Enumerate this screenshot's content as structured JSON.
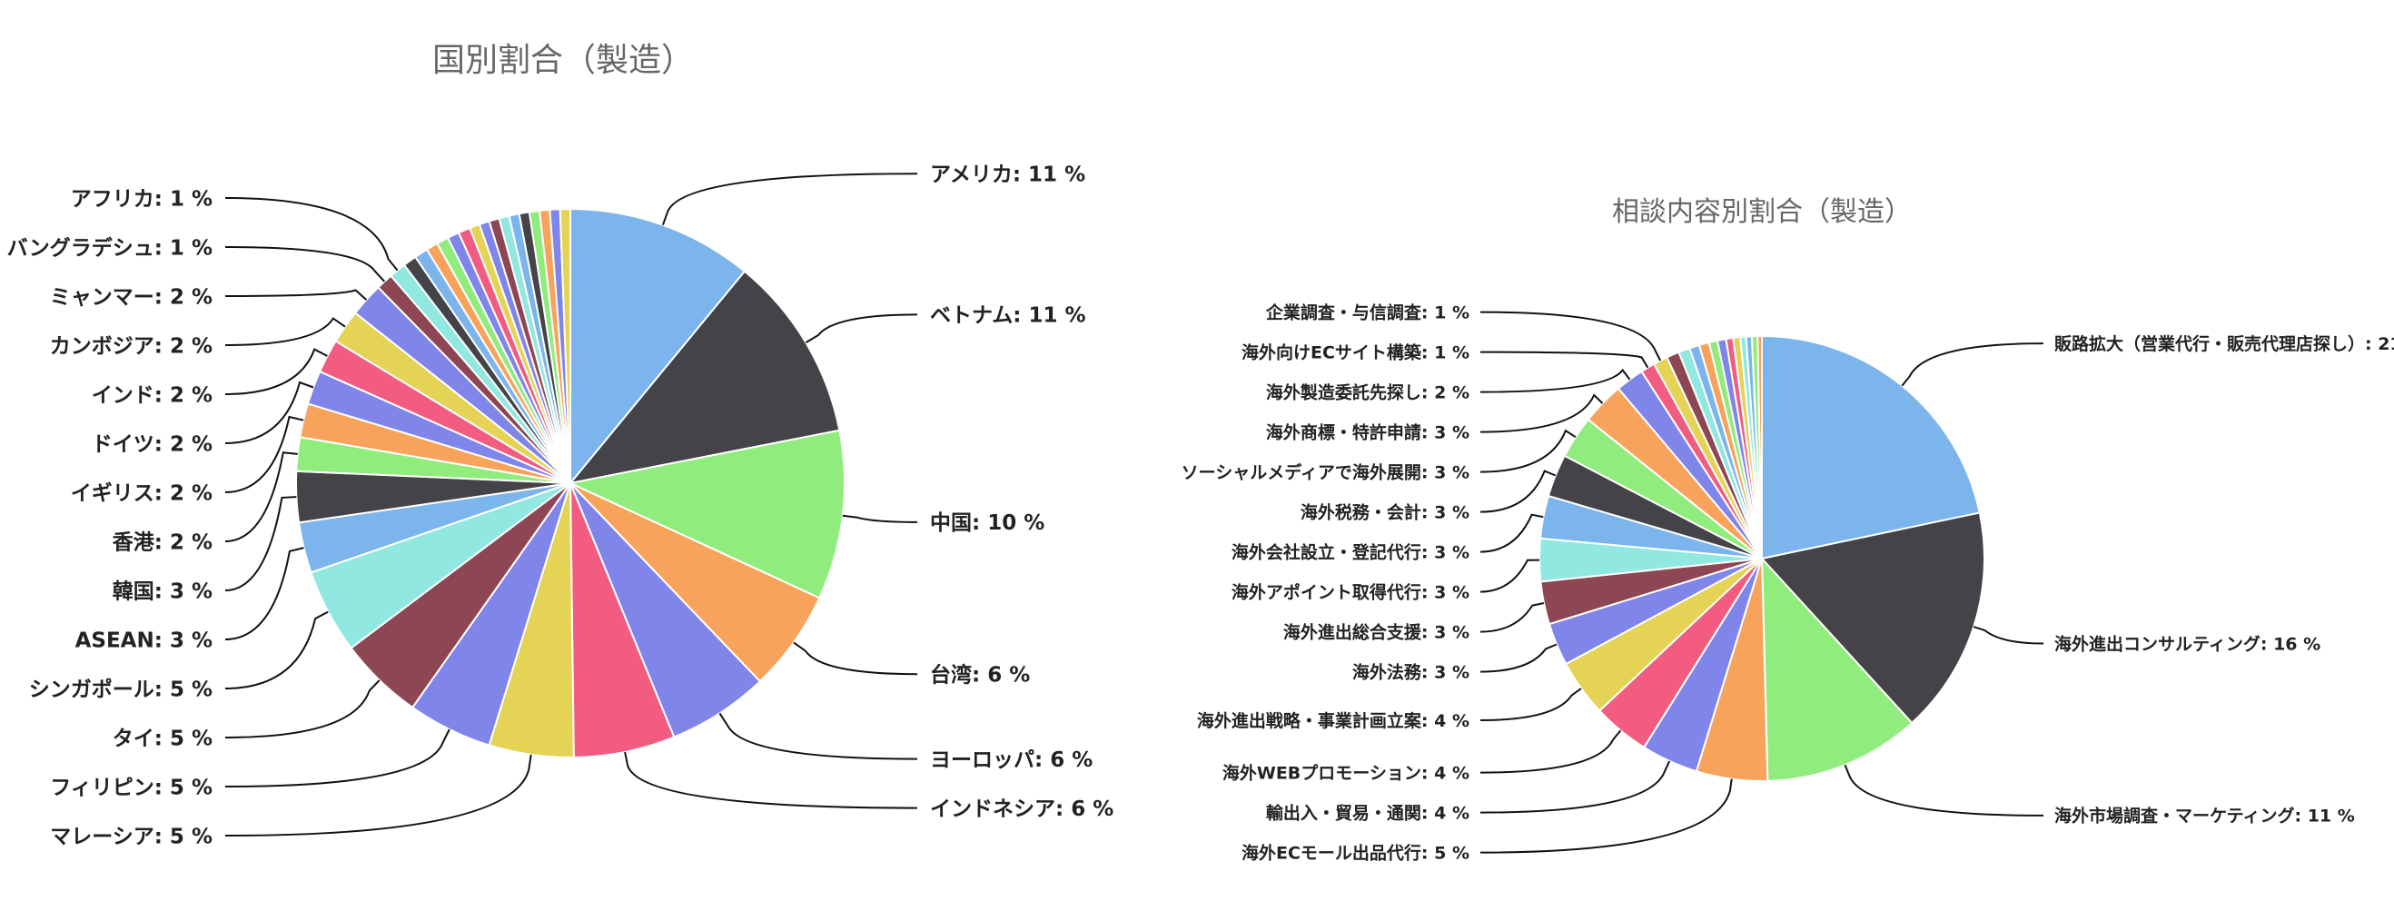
{
  "palette": [
    "#7cb5ec",
    "#434348",
    "#90ed7d",
    "#f7a35c",
    "#8085e9",
    "#f15c80",
    "#e4d354",
    "#2b908f",
    "#f45b5b",
    "#91e8e1"
  ],
  "chart_data": [
    {
      "type": "pie",
      "title": "国別割合（製造）",
      "unit": "%",
      "slices": [
        {
          "label": "アメリカ",
          "value": 11,
          "color": "#7cb5ec"
        },
        {
          "label": "ベトナム",
          "value": 11,
          "color": "#434348"
        },
        {
          "label": "中国",
          "value": 10,
          "color": "#90ed7d"
        },
        {
          "label": "台湾",
          "value": 6,
          "color": "#f7a35c"
        },
        {
          "label": "ヨーロッパ",
          "value": 6,
          "color": "#8085e9"
        },
        {
          "label": "インドネシア",
          "value": 6,
          "color": "#f15c80"
        },
        {
          "label": "マレーシア",
          "value": 5,
          "color": "#e4d354"
        },
        {
          "label": "フィリピン",
          "value": 5,
          "color": "#8085e9"
        },
        {
          "label": "タイ",
          "value": 5,
          "color": "#8d4653"
        },
        {
          "label": "シンガポール",
          "value": 5,
          "color": "#91e8e1"
        },
        {
          "label": "ASEAN",
          "value": 3,
          "color": "#7cb5ec"
        },
        {
          "label": "韓国",
          "value": 3,
          "color": "#434348"
        },
        {
          "label": "香港",
          "value": 2,
          "color": "#90ed7d"
        },
        {
          "label": "イギリス",
          "value": 2,
          "color": "#f7a35c"
        },
        {
          "label": "ドイツ",
          "value": 2,
          "color": "#8085e9"
        },
        {
          "label": "インド",
          "value": 2,
          "color": "#f15c80"
        },
        {
          "label": "カンボジア",
          "value": 2,
          "color": "#e4d354"
        },
        {
          "label": "ミャンマー",
          "value": 2,
          "color": "#8085e9"
        },
        {
          "label": "バングラデシュ",
          "value": 1,
          "color": "#8d4653"
        },
        {
          "label": "アフリカ",
          "value": 1,
          "color": "#91e8e1"
        },
        {
          "label": "",
          "value": 0.8,
          "color": "#434348"
        },
        {
          "label": "",
          "value": 0.8,
          "color": "#7cb5ec"
        },
        {
          "label": "",
          "value": 0.7,
          "color": "#f7a35c"
        },
        {
          "label": "",
          "value": 0.7,
          "color": "#90ed7d"
        },
        {
          "label": "",
          "value": 0.7,
          "color": "#8085e9"
        },
        {
          "label": "",
          "value": 0.7,
          "color": "#f15c80"
        },
        {
          "label": "",
          "value": 0.6,
          "color": "#e4d354"
        },
        {
          "label": "",
          "value": 0.6,
          "color": "#8085e9"
        },
        {
          "label": "",
          "value": 0.6,
          "color": "#8d4653"
        },
        {
          "label": "",
          "value": 0.6,
          "color": "#91e8e1"
        },
        {
          "label": "",
          "value": 0.6,
          "color": "#7cb5ec"
        },
        {
          "label": "",
          "value": 0.6,
          "color": "#434348"
        },
        {
          "label": "",
          "value": 0.6,
          "color": "#90ed7d"
        },
        {
          "label": "",
          "value": 0.6,
          "color": "#f7a35c"
        },
        {
          "label": "",
          "value": 0.6,
          "color": "#8085e9"
        },
        {
          "label": "",
          "value": 0.6,
          "color": "#e4d354"
        }
      ]
    },
    {
      "type": "pie",
      "title": "相談内容別割合（製造）",
      "unit": "%",
      "slices": [
        {
          "label": "販路拡大（営業代行・販売代理店探し）",
          "value": 21,
          "color": "#7cb5ec"
        },
        {
          "label": "海外進出コンサルティング",
          "value": 16,
          "color": "#434348"
        },
        {
          "label": "海外市場調査・マーケティング",
          "value": 11,
          "color": "#90ed7d"
        },
        {
          "label": "海外ECモール出品代行",
          "value": 5,
          "color": "#f7a35c"
        },
        {
          "label": "輸出入・貿易・通関",
          "value": 4,
          "color": "#8085e9"
        },
        {
          "label": "海外WEBプロモーション",
          "value": 4,
          "color": "#f15c80"
        },
        {
          "label": "海外進出戦略・事業計画立案",
          "value": 4,
          "color": "#e4d354"
        },
        {
          "label": "海外法務",
          "value": 3,
          "color": "#8085e9"
        },
        {
          "label": "海外進出総合支援",
          "value": 3,
          "color": "#8d4653"
        },
        {
          "label": "海外アポイント取得代行",
          "value": 3,
          "color": "#91e8e1"
        },
        {
          "label": "海外会社設立・登記代行",
          "value": 3,
          "color": "#7cb5ec"
        },
        {
          "label": "海外税務・会計",
          "value": 3,
          "color": "#434348"
        },
        {
          "label": "ソーシャルメディアで海外展開",
          "value": 3,
          "color": "#90ed7d"
        },
        {
          "label": "海外商標・特許申請",
          "value": 3,
          "color": "#f7a35c"
        },
        {
          "label": "海外製造委託先探し",
          "value": 2,
          "color": "#8085e9"
        },
        {
          "label": "海外向けECサイト構築",
          "value": 1,
          "color": "#f15c80"
        },
        {
          "label": "企業調査・与信調査",
          "value": 1,
          "color": "#e4d354"
        },
        {
          "label": "",
          "value": 0.9,
          "color": "#8d4653"
        },
        {
          "label": "",
          "value": 0.8,
          "color": "#91e8e1"
        },
        {
          "label": "",
          "value": 0.7,
          "color": "#7cb5ec"
        },
        {
          "label": "",
          "value": 0.7,
          "color": "#f7a35c"
        },
        {
          "label": "",
          "value": 0.6,
          "color": "#90ed7d"
        },
        {
          "label": "",
          "value": 0.6,
          "color": "#8085e9"
        },
        {
          "label": "",
          "value": 0.5,
          "color": "#f15c80"
        },
        {
          "label": "",
          "value": 0.5,
          "color": "#e4d354"
        },
        {
          "label": "",
          "value": 0.4,
          "color": "#91e8e1"
        },
        {
          "label": "",
          "value": 0.4,
          "color": "#7cb5ec"
        },
        {
          "label": "",
          "value": 0.4,
          "color": "#90ed7d"
        },
        {
          "label": "",
          "value": 0.3,
          "color": "#f7a35c"
        }
      ]
    }
  ]
}
